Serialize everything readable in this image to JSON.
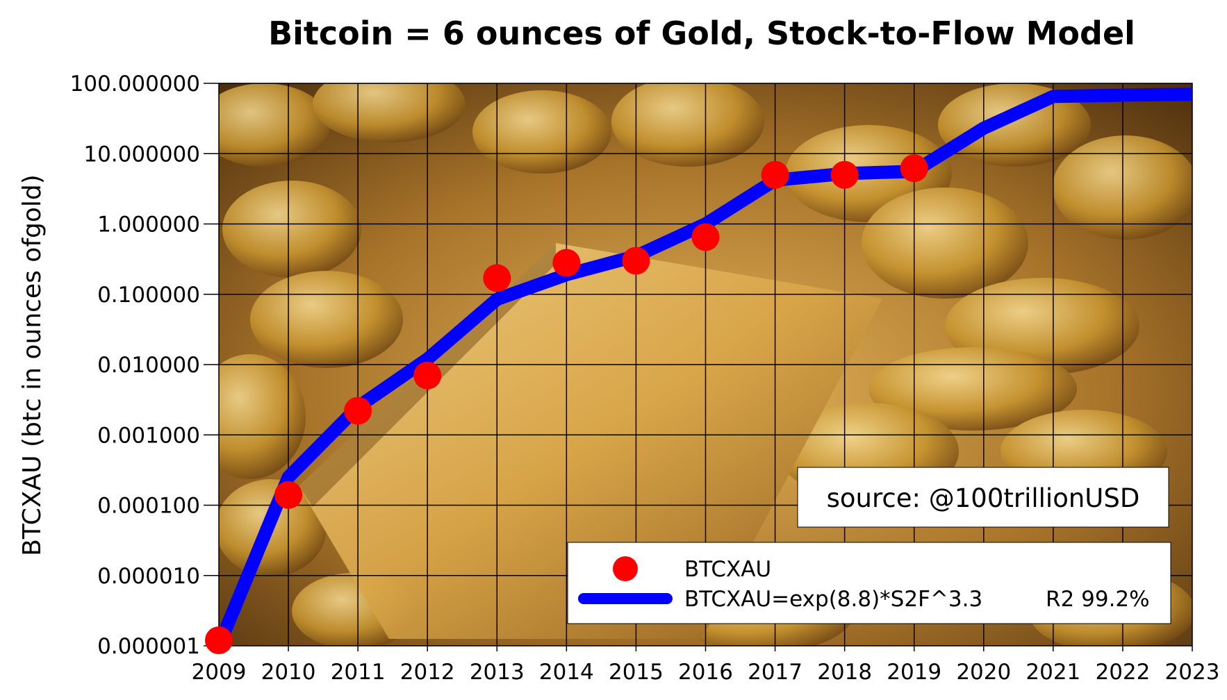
{
  "chart_data": {
    "type": "line",
    "title": "Bitcoin = 6 ounces of Gold, Stock-to-Flow Model",
    "xlabel": "",
    "ylabel": "BTCXAU (btc in ounces ofgold)",
    "yscale": "log",
    "xlim": [
      2009,
      2023
    ],
    "ylim": [
      1e-06,
      100
    ],
    "grid": true,
    "legend_position": "bottom-right",
    "background": "photo of gold bars and gold coins",
    "x_tick_labels": [
      "2009",
      "2010",
      "2011",
      "2012",
      "2013",
      "2014",
      "2015",
      "2016",
      "2017",
      "2018",
      "2019",
      "2020",
      "2021",
      "2022",
      "2023"
    ],
    "y_tick_labels": [
      "0.000001",
      "0.000010",
      "0.000100",
      "0.001000",
      "0.010000",
      "0.100000",
      "1.000000",
      "10.000000",
      "100.000000"
    ],
    "annotation": "source: @100trillionUSD",
    "series": [
      {
        "name": "BTCXAU",
        "style": "markers",
        "color": "#ff0000",
        "x": [
          2009,
          2010,
          2011,
          2012,
          2013,
          2014,
          2015,
          2016,
          2017,
          2018,
          2019
        ],
        "y": [
          1.2e-06,
          0.00014,
          0.0022,
          0.007,
          0.17,
          0.28,
          0.3,
          0.65,
          5.0,
          5.0,
          6.2
        ]
      },
      {
        "name": "BTCXAU=exp(8.8)*S2F^3.3",
        "legend_suffix": "R2 99.2%",
        "style": "line",
        "color": "#0000ff",
        "x": [
          2009,
          2010,
          2011,
          2012,
          2013,
          2014,
          2015,
          2016,
          2017,
          2018,
          2019,
          2020,
          2021,
          2022,
          2023
        ],
        "y": [
          1e-06,
          0.00025,
          0.0025,
          0.012,
          0.085,
          0.19,
          0.35,
          1.0,
          4.2,
          5.2,
          5.6,
          23,
          65,
          68,
          70
        ]
      }
    ]
  }
}
